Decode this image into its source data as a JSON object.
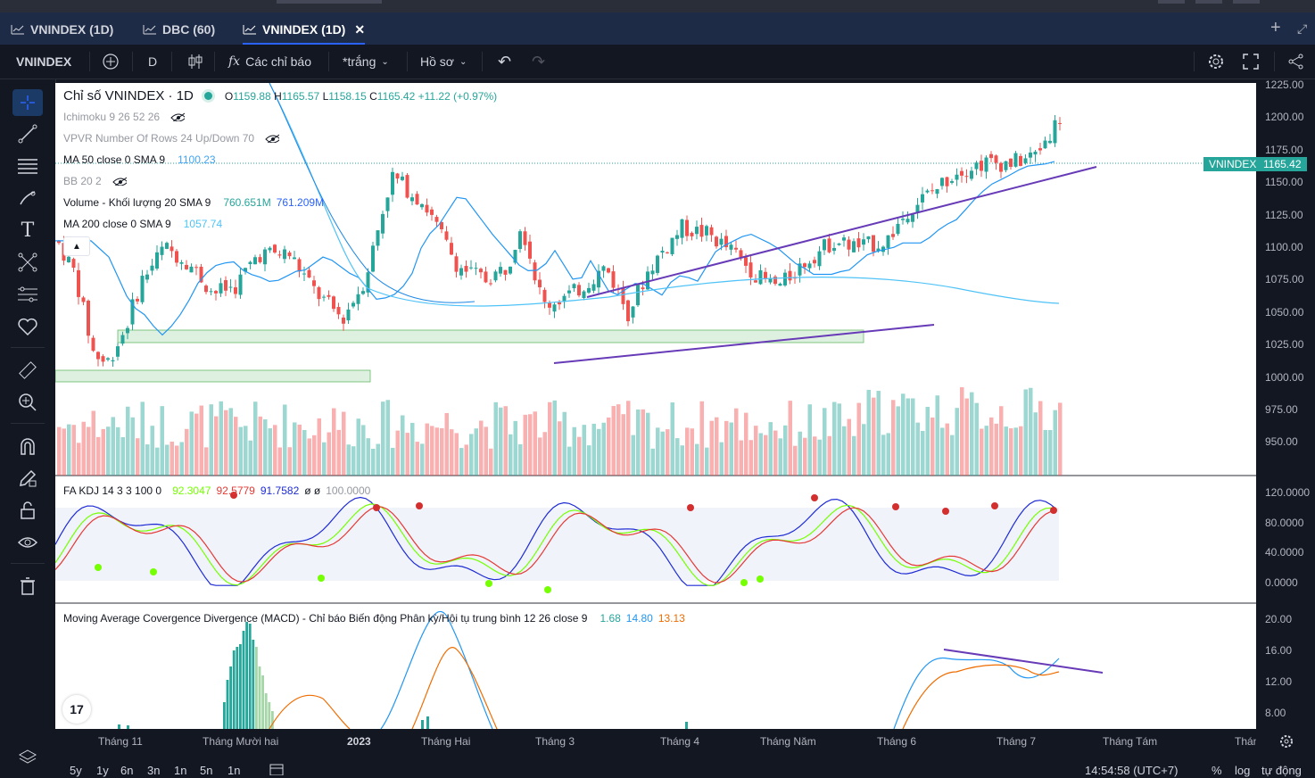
{
  "tabs": [
    {
      "label": "VNINDEX (1D)",
      "active": false
    },
    {
      "label": "DBC (60)",
      "active": false
    },
    {
      "label": "VNINDEX (1D)",
      "active": true
    }
  ],
  "toolbar": {
    "symbol": "VNINDEX",
    "interval": "D",
    "indicators_label": "Các chỉ báo",
    "template_label": "*trắng",
    "profile_label": "Hồ sơ"
  },
  "legend": {
    "title": "Chỉ số VNINDEX · 1D",
    "ohlc": {
      "o_label": "O",
      "o": "1159.88",
      "h_label": "H",
      "h": "1165.57",
      "l_label": "L",
      "l": "1158.15",
      "c_label": "C",
      "c": "1165.42",
      "change": "+11.22 (+0.97%)"
    },
    "ichimoku": "Ichimoku 9 26 52 26",
    "vpvr": "VPVR Number Of Rows 24 Up/Down 70",
    "ma50": "MA 50 close 0 SMA 9",
    "ma50_val": "1100.23",
    "bb": "BB 20 2",
    "volume": "Volume - Khối lượng 20 SMA 9",
    "volume_val1": "760.651M",
    "volume_val2": "761.209M",
    "ma200": "MA 200 close 0 SMA 9",
    "ma200_val": "1057.74"
  },
  "kdj": {
    "label": "FA KDJ 14 3 3 100 0",
    "k": "92.3047",
    "d": "92.5779",
    "j": "91.7582",
    "extra": "ø ø",
    "last": "100.0000"
  },
  "macd": {
    "label": "Moving Average Covergence Divergence (MACD) - Chỉ báo Biến động Phân kỳ/Hội tụ trung bình 12 26 close 9",
    "v1": "1.68",
    "v2": "14.80",
    "v3": "13.13"
  },
  "price_axis": {
    "main": [
      "1225.00",
      "1200.00",
      "1175.00",
      "1150.00",
      "1125.00",
      "1100.00",
      "1075.00",
      "1050.00",
      "1025.00",
      "1000.00",
      "975.00",
      "950.00"
    ],
    "kdj": [
      "120.0000",
      "80.0000",
      "40.0000",
      "0.0000"
    ],
    "macd": [
      "20.00",
      "16.00",
      "12.00",
      "8.00"
    ],
    "last_symbol": "VNINDEX",
    "last_price": "1165.42"
  },
  "time_axis": [
    "Tháng 11",
    "Tháng Mười hai",
    "2023",
    "Tháng Hai",
    "Tháng 3",
    "Tháng 4",
    "Tháng Năm",
    "Tháng 6",
    "Tháng 7",
    "Tháng Tám",
    "Thán"
  ],
  "bottom": {
    "ranges": [
      "5y",
      "1y",
      "6n",
      "3n",
      "1n",
      "5n",
      "1n"
    ],
    "time": "14:54:58 (UTC+7)",
    "pct": "%",
    "log": "log",
    "auto": "tự động"
  },
  "colors": {
    "up": "#26a69a",
    "down": "#ef5350",
    "accent": "#2962ff",
    "trend": "#673ab7",
    "ma": "#42a5f5"
  }
}
